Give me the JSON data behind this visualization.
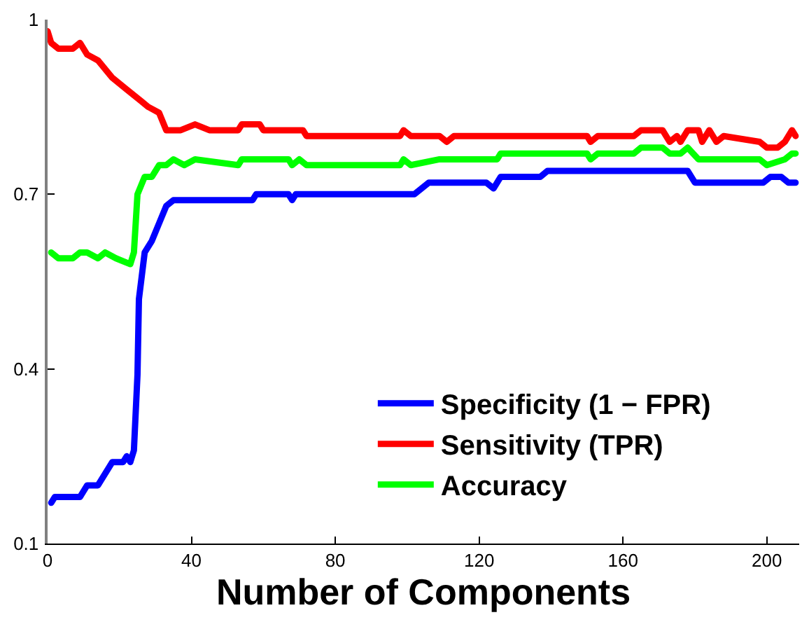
{
  "chart_data": {
    "type": "line",
    "xlabel": "Number of Components",
    "xlim": [
      0,
      209
    ],
    "xticks": [
      0,
      40,
      80,
      120,
      160,
      200
    ],
    "ylim": [
      0.1,
      1
    ],
    "yticks": [
      0.1,
      0.4,
      0.7,
      1
    ],
    "legend": "bottom right",
    "marker": "none",
    "line_style": "solid",
    "series": [
      {
        "name": "Specificity (1 − FPR)",
        "color": "#0000ff",
        "x": [
          1,
          2,
          9,
          11,
          14,
          18,
          21,
          22,
          23,
          24,
          25,
          25.4,
          27,
          29,
          31,
          33,
          35,
          57,
          58,
          67,
          68,
          69,
          96,
          102,
          106,
          122,
          124,
          126,
          137,
          139,
          178,
          180,
          199,
          201,
          204,
          206,
          208
        ],
        "values": [
          0.17,
          0.18,
          0.18,
          0.2,
          0.2,
          0.24,
          0.24,
          0.25,
          0.24,
          0.26,
          0.39,
          0.52,
          0.6,
          0.62,
          0.65,
          0.68,
          0.69,
          0.69,
          0.7,
          0.7,
          0.69,
          0.7,
          0.7,
          0.7,
          0.72,
          0.72,
          0.71,
          0.73,
          0.73,
          0.74,
          0.74,
          0.72,
          0.72,
          0.73,
          0.73,
          0.72,
          0.72
        ]
      },
      {
        "name": "Sensitivity (TPR)",
        "color": "#ff0000",
        "x": [
          0,
          1,
          3,
          7,
          9,
          11,
          14,
          18,
          22,
          26,
          28,
          31,
          33,
          35,
          37,
          41,
          45,
          53,
          54,
          59,
          60,
          71,
          72,
          98,
          99,
          101,
          109,
          111,
          113,
          150,
          151,
          153,
          163,
          165,
          171,
          173,
          175,
          176,
          178,
          181,
          182,
          184,
          186,
          188,
          198,
          200,
          203,
          205,
          207,
          208
        ],
        "values": [
          0.98,
          0.96,
          0.95,
          0.95,
          0.96,
          0.94,
          0.93,
          0.9,
          0.88,
          0.86,
          0.85,
          0.84,
          0.81,
          0.81,
          0.81,
          0.82,
          0.81,
          0.81,
          0.82,
          0.82,
          0.81,
          0.81,
          0.8,
          0.8,
          0.81,
          0.8,
          0.8,
          0.79,
          0.8,
          0.8,
          0.79,
          0.8,
          0.8,
          0.81,
          0.81,
          0.79,
          0.8,
          0.79,
          0.81,
          0.81,
          0.79,
          0.81,
          0.79,
          0.8,
          0.79,
          0.78,
          0.78,
          0.79,
          0.81,
          0.8
        ]
      },
      {
        "name": "Accuracy",
        "color": "#00ff00",
        "x": [
          1,
          3,
          7,
          9,
          11,
          14,
          16,
          19,
          23,
          24,
          25,
          27,
          29,
          31,
          33,
          35,
          38,
          41,
          53,
          54,
          67,
          68,
          70,
          72,
          98,
          99,
          101,
          109,
          113,
          123,
          125,
          126,
          138,
          150,
          151,
          153,
          163,
          165,
          171,
          173,
          176,
          178,
          181,
          187,
          198,
          200,
          205,
          207,
          208
        ],
        "values": [
          0.6,
          0.59,
          0.59,
          0.6,
          0.6,
          0.59,
          0.6,
          0.59,
          0.58,
          0.6,
          0.7,
          0.73,
          0.73,
          0.75,
          0.75,
          0.76,
          0.75,
          0.76,
          0.75,
          0.76,
          0.76,
          0.75,
          0.76,
          0.75,
          0.75,
          0.76,
          0.75,
          0.76,
          0.76,
          0.76,
          0.76,
          0.77,
          0.77,
          0.77,
          0.76,
          0.77,
          0.77,
          0.78,
          0.78,
          0.77,
          0.77,
          0.78,
          0.76,
          0.76,
          0.76,
          0.75,
          0.76,
          0.77,
          0.77
        ]
      }
    ]
  }
}
